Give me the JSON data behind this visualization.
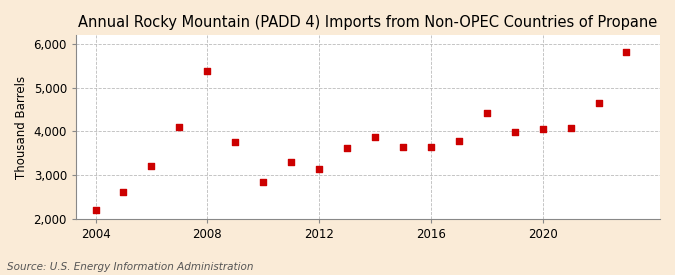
{
  "title": "Annual Rocky Mountain (PADD 4) Imports from Non-OPEC Countries of Propane",
  "ylabel": "Thousand Barrels",
  "source": "Source: U.S. Energy Information Administration",
  "figure_background": "#faebd7",
  "plot_background": "#ffffff",
  "years": [
    2004,
    2005,
    2006,
    2007,
    2008,
    2009,
    2010,
    2011,
    2012,
    2013,
    2014,
    2015,
    2016,
    2017,
    2018,
    2019,
    2020,
    2021,
    2022,
    2023
  ],
  "values": [
    2200,
    2620,
    3200,
    4100,
    5380,
    3750,
    2850,
    3300,
    3140,
    3620,
    3880,
    3650,
    3650,
    3780,
    4430,
    3980,
    4050,
    4070,
    4650,
    5810
  ],
  "dot_color": "#cc0000",
  "dot_size": 16,
  "xlim": [
    2003.3,
    2024.2
  ],
  "ylim": [
    2000,
    6200
  ],
  "yticks": [
    2000,
    3000,
    4000,
    5000,
    6000
  ],
  "xticks": [
    2004,
    2008,
    2012,
    2016,
    2020
  ],
  "grid_color": "#bbbbbb",
  "title_fontsize": 10.5,
  "ylabel_fontsize": 8.5,
  "tick_fontsize": 8.5,
  "source_fontsize": 7.5
}
